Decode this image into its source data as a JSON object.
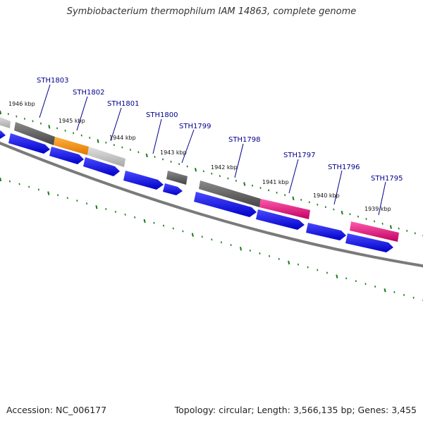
{
  "title": "Symbiobacterium thermophilum IAM 14863, complete genome",
  "footer": {
    "accession": "Accession: NC_006177",
    "stats": "Topology: circular; Length: 3,566,135 bp; Genes: 3,455"
  },
  "colors": {
    "background": "#ffffff",
    "cds_strand": "#0000ee",
    "gene_dark": "#5a5a5a",
    "gene_light": "#bdbdbd",
    "gene_orange": "#ff8c00",
    "gene_magenta": "#e8127f",
    "tick": "#1a7a1a",
    "backbone": "#7a7a7a",
    "label": "#00008b"
  },
  "gene_labels": [
    "STH1803",
    "STH1802",
    "STH1801",
    "STH1800",
    "STH1799",
    "STH1798",
    "STH1797",
    "STH1796",
    "STH1795"
  ],
  "kbp_labels": [
    "1946 kbp",
    "1945 kbp",
    "1944 kbp",
    "1943 kbp",
    "1942 kbp",
    "1941 kbp",
    "1940 kbp",
    "1939 kbp"
  ]
}
